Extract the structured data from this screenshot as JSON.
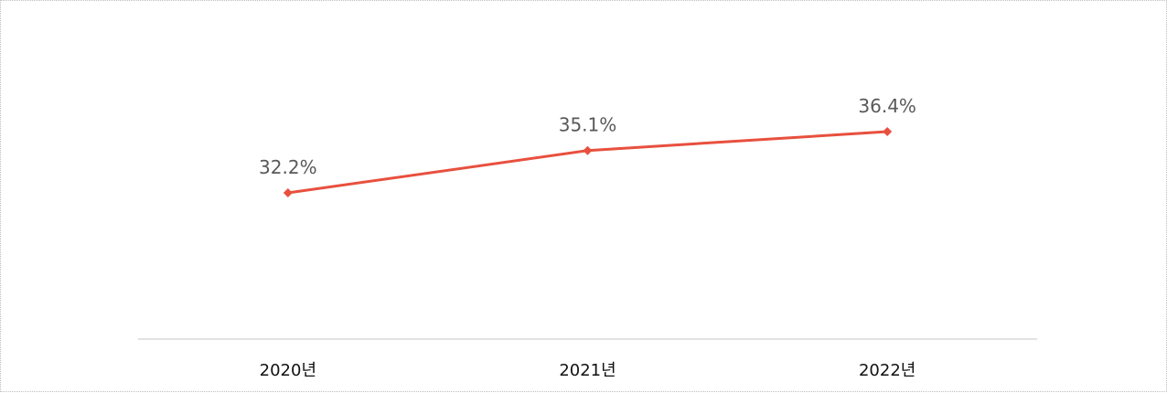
{
  "chart_data": {
    "type": "line",
    "categories": [
      "2020년",
      "2021년",
      "2022년"
    ],
    "series": [
      {
        "values": [
          32.2,
          35.1,
          36.4
        ],
        "color": "#e8503e",
        "marker": "diamond"
      }
    ],
    "data_labels": [
      "32.2%",
      "35.1%",
      "36.4%"
    ],
    "title": "",
    "xlabel": "",
    "ylabel": "",
    "y_axis_visible": false,
    "grid": false,
    "legend": "none",
    "baseline_color": "#d9d9d9"
  }
}
